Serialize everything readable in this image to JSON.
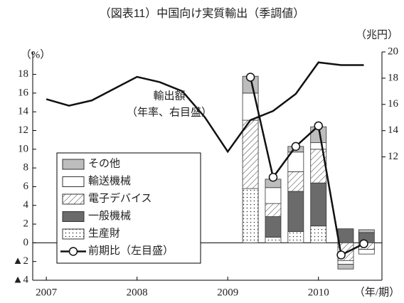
{
  "chart_data": {
    "type": "bar",
    "title": "（図表11）中国向け実質輸出（季調値）",
    "y_label": "（%）",
    "y2_label": "（兆円）",
    "x_label": "（年/期）",
    "xlim": [
      2006.85,
      2010.7
    ],
    "xticks": [
      2007,
      2008,
      2009,
      2010
    ],
    "ylim": [
      -4,
      20.4
    ],
    "yticks": [
      {
        "value": -4,
        "label": "▲4"
      },
      {
        "value": -2,
        "label": "▲2"
      },
      0,
      2,
      4,
      6,
      8,
      10,
      12,
      14,
      16,
      18
    ],
    "y2lim": [
      2.6,
      20
    ],
    "y2ticks": [
      12,
      14,
      16,
      18,
      20
    ],
    "series": [
      {
        "name": "生産財",
        "type": "bar",
        "color": "#ffffff",
        "pattern": "dots",
        "x": [
          2009.25,
          2009.5,
          2009.75,
          2010.0,
          2010.3,
          2010.53
        ],
        "values": [
          5.8,
          0.6,
          1.2,
          1.8,
          0,
          0
        ]
      },
      {
        "name": "一般機械",
        "type": "bar",
        "color": "#6b6b6b",
        "x": [
          2009.25,
          2009.5,
          2009.75,
          2010.0,
          2010.3,
          2010.53
        ],
        "values": [
          0,
          2.2,
          4.3,
          4.6,
          1.5,
          1.1
        ]
      },
      {
        "name": "電子デバイス",
        "type": "bar",
        "color": "#ffffff",
        "pattern": "hatch",
        "x": [
          2009.25,
          2009.5,
          2009.75,
          2010.0,
          2010.3,
          2010.53
        ],
        "values": [
          7.3,
          1.4,
          2.1,
          3.6,
          -1.9,
          -0.7
        ]
      },
      {
        "name": "輸送機械",
        "type": "bar",
        "color": "#ffffff",
        "x": [
          2009.25,
          2009.5,
          2009.75,
          2010.0,
          2010.3,
          2010.53
        ],
        "values": [
          2.9,
          1.7,
          2.1,
          0.7,
          -0.4,
          -0.5
        ]
      },
      {
        "name": "その他",
        "type": "bar",
        "color": "#bdbdbd",
        "x": [
          2009.25,
          2009.5,
          2009.75,
          2010.0,
          2010.3,
          2010.53
        ],
        "values": [
          1.8,
          0.9,
          0.6,
          1.7,
          -0.5,
          0.3
        ]
      },
      {
        "name": "前期比（左目盛）",
        "type": "line",
        "marker": "circle",
        "color": "#111111",
        "x": [
          2009.25,
          2009.5,
          2009.75,
          2010.0,
          2010.25,
          2010.5
        ],
        "values": [
          17.7,
          7.0,
          10.3,
          12.5,
          -1.3,
          -0.1
        ]
      },
      {
        "type": "line",
        "axis": "y2",
        "color": "#111111",
        "annotation": [
          "輸出額",
          "（年率、右目盛）"
        ],
        "x": [
          2007,
          2007.25,
          2007.5,
          2007.75,
          2008,
          2008.25,
          2008.5,
          2008.75,
          2009,
          2009.25,
          2009.5,
          2009.75,
          2010,
          2010.25,
          2010.5
        ],
        "values": [
          16.4,
          15.9,
          16.3,
          17.2,
          18.1,
          17.7,
          17.0,
          15.0,
          12.4,
          14.8,
          15.5,
          16.8,
          19.2,
          19.0,
          19.0
        ]
      }
    ]
  }
}
